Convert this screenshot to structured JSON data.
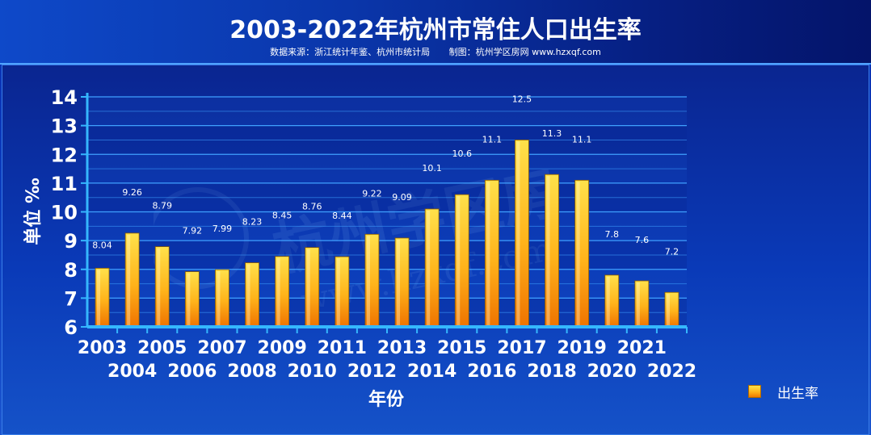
{
  "header": {
    "title": "2003-2022年杭州市常住人口出生率",
    "source": "数据来源：浙江统计年鉴、杭州市统计局",
    "credit": "制图：杭州学区房网 www.hzxqf.com"
  },
  "watermark": {
    "text_cn": "杭州学区房",
    "text_url": "www.hzxqf.com"
  },
  "colors": {
    "bar_top": "#ffe14a",
    "bar_mid": "#ffb31a",
    "bar_bottom": "#ef7300",
    "gridline": "#3fa0ff",
    "axis": "#35b7ff",
    "label": "#ffffff"
  },
  "chart_data": {
    "type": "bar",
    "categories": [
      "2003",
      "2004",
      "2005",
      "2006",
      "2007",
      "2008",
      "2009",
      "2010",
      "2011",
      "2012",
      "2013",
      "2014",
      "2015",
      "2016",
      "2017",
      "2018",
      "2019",
      "2020",
      "2021",
      "2022"
    ],
    "series": [
      {
        "name": "出生率",
        "values": [
          8.04,
          9.26,
          8.79,
          7.92,
          7.99,
          8.23,
          8.45,
          8.76,
          8.44,
          9.22,
          9.09,
          10.1,
          10.6,
          11.1,
          12.5,
          11.3,
          11.1,
          7.8,
          7.6,
          7.2
        ]
      }
    ],
    "data_labels": [
      "8.04",
      "9.26",
      "8.79",
      "7.92",
      "7.99",
      "8.23",
      "8.45",
      "8.76",
      "8.44",
      "9.22",
      "9.09",
      "10.1",
      "10.6",
      "11.1",
      "12.5",
      "11.3",
      "11.1",
      "7.8",
      "7.6",
      "7.2"
    ],
    "title": "2003-2022年杭州市常住人口出生率",
    "xlabel": "年份",
    "ylabel": "单位 ‰",
    "ylim": [
      6,
      14
    ],
    "yticks": [
      6,
      7,
      8,
      9,
      10,
      11,
      12,
      13,
      14
    ],
    "grid": true,
    "legend_position": "bottom-right"
  }
}
